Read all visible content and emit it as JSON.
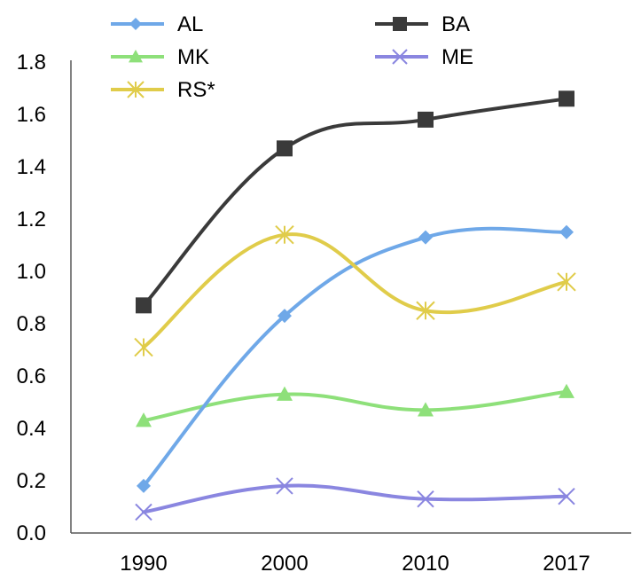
{
  "chart_data": {
    "type": "line",
    "title": "",
    "xlabel": "",
    "ylabel": "",
    "categories": [
      "1990",
      "2000",
      "2010",
      "2017"
    ],
    "ylim": [
      0,
      1.8
    ],
    "yticks": [
      "0.0",
      "0.2",
      "0.4",
      "0.6",
      "0.8",
      "1.0",
      "1.2",
      "1.4",
      "1.6",
      "1.8"
    ],
    "grid": false,
    "legend_position": "top",
    "smooth": true,
    "series": [
      {
        "name": "AL",
        "values": [
          0.18,
          0.83,
          1.13,
          1.15
        ],
        "color": "#6fa8e8",
        "marker": "diamond"
      },
      {
        "name": "BA",
        "values": [
          0.87,
          1.47,
          1.58,
          1.66
        ],
        "color": "#3a3a3a",
        "marker": "square"
      },
      {
        "name": "MK",
        "values": [
          0.43,
          0.53,
          0.47,
          0.54
        ],
        "color": "#8ee07a",
        "marker": "triangle"
      },
      {
        "name": "ME",
        "values": [
          0.08,
          0.18,
          0.13,
          0.14
        ],
        "color": "#8a86e0",
        "marker": "x"
      },
      {
        "name": "RS*",
        "values": [
          0.71,
          1.14,
          0.85,
          0.96
        ],
        "color": "#e0cc4a",
        "marker": "star"
      }
    ]
  }
}
